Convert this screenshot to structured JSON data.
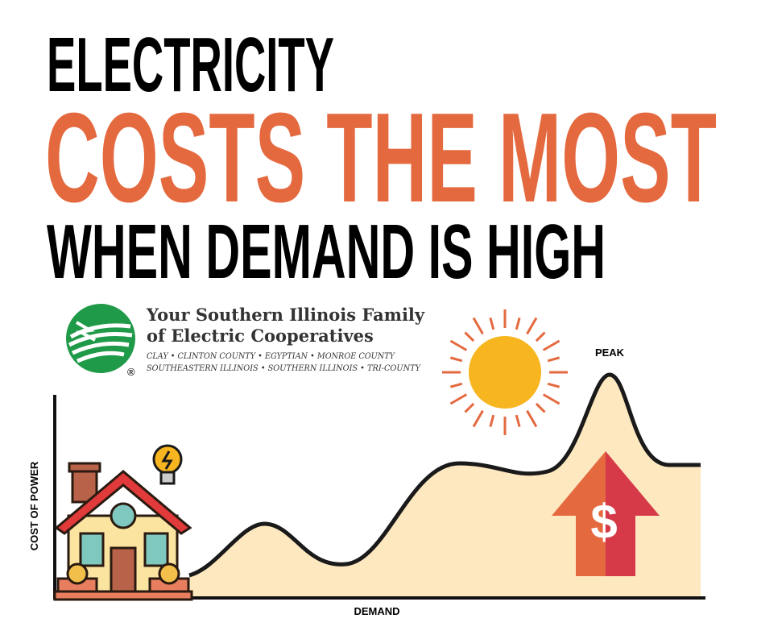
{
  "headline": {
    "line1": "ELECTRICITY",
    "line2": "COSTS THE MOST",
    "line3": "WHEN DEMAND IS HIGH"
  },
  "logo": {
    "name_line1": "Your Southern Illinois Family",
    "name_line2": "of Electric Cooperatives",
    "members_line1": "CLAY • CLINTON COUNTY • EGYPTIAN • MONROE COUNTY",
    "members_line2": "SOUTHEASTERN ILLINOIS • SOUTHERN ILLINOIS • TRI-COUNTY",
    "registered": "®"
  },
  "illustration": {
    "y_axis_label": "COST OF POWER",
    "x_axis_label": "DEMAND",
    "peak_label": "PEAK",
    "price_symbol": "$"
  }
}
